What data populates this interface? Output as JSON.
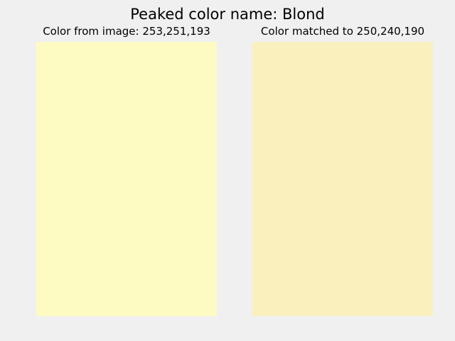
{
  "window": {
    "title": "Peaked color name: Blond"
  },
  "panels": [
    {
      "label": "Color from image: 253,251,193",
      "color": "#fdfbc1"
    },
    {
      "label": "Color matched to 250,240,190",
      "color": "#faf0be"
    }
  ],
  "colors": {
    "background": "#f0f0f0"
  }
}
